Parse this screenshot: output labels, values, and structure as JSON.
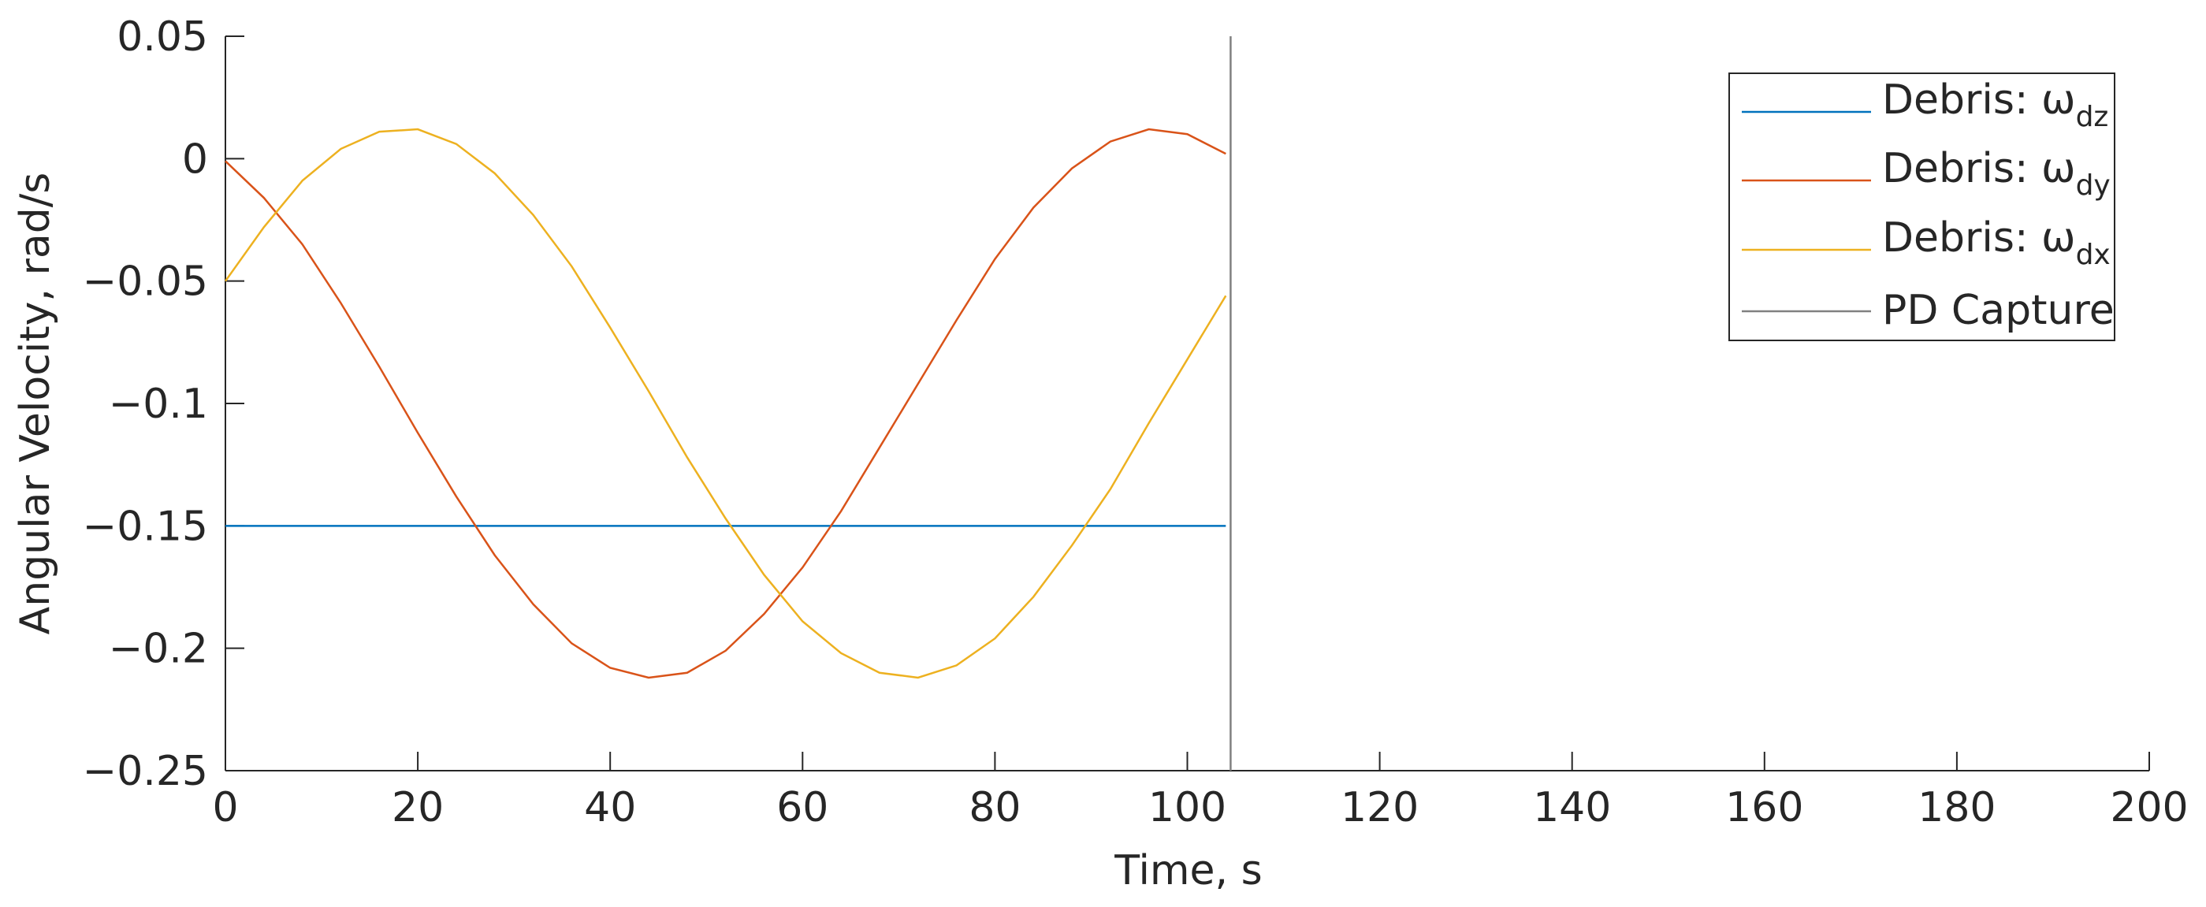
{
  "chart_data": {
    "type": "line",
    "ylabel": "Angular Velocity, rad/s",
    "xlabel": "Time, s",
    "x": [
      0,
      4,
      8,
      12,
      16,
      20,
      24,
      28,
      32,
      36,
      40,
      44,
      48,
      52,
      56,
      60,
      64,
      68,
      72,
      76,
      80,
      84,
      88,
      92,
      96,
      100,
      104
    ],
    "series": [
      {
        "name": "Debris: ω",
        "subscript": "dz",
        "color": "#0072bd",
        "values": [
          -0.15,
          -0.15,
          -0.15,
          -0.15,
          -0.15,
          -0.15,
          -0.15,
          -0.15,
          -0.15,
          -0.15,
          -0.15,
          -0.15,
          -0.15,
          -0.15,
          -0.15,
          -0.15,
          -0.15,
          -0.15,
          -0.15,
          -0.15,
          -0.15,
          -0.15,
          -0.15,
          -0.15,
          -0.15,
          -0.15,
          -0.15
        ]
      },
      {
        "name": "Debris: ω",
        "subscript": "dy",
        "color": "#d95319",
        "values": [
          -0.001,
          -0.016,
          -0.035,
          -0.059,
          -0.085,
          -0.112,
          -0.138,
          -0.162,
          -0.182,
          -0.198,
          -0.208,
          -0.212,
          -0.21,
          -0.201,
          -0.186,
          -0.167,
          -0.144,
          -0.118,
          -0.092,
          -0.066,
          -0.041,
          -0.02,
          -0.004,
          0.007,
          0.012,
          0.01,
          0.002
        ]
      },
      {
        "name": "Debris: ω",
        "subscript": "dx",
        "color": "#edb120",
        "values": [
          -0.05,
          -0.028,
          -0.009,
          0.004,
          0.011,
          0.012,
          0.006,
          -0.006,
          -0.023,
          -0.044,
          -0.069,
          -0.095,
          -0.122,
          -0.147,
          -0.17,
          -0.189,
          -0.202,
          -0.21,
          -0.212,
          -0.207,
          -0.196,
          -0.179,
          -0.158,
          -0.135,
          -0.108,
          -0.082,
          -0.056
        ]
      }
    ],
    "vline": {
      "name": "PD Capture",
      "x": 104.5,
      "color": "#808080"
    },
    "xlim": [
      0,
      200
    ],
    "xticks": [
      0,
      20,
      40,
      60,
      80,
      100,
      120,
      140,
      160,
      180,
      200
    ],
    "ylim": [
      -0.25,
      0.05
    ],
    "yticks": [
      {
        "value": -0.25,
        "label": "−0.25"
      },
      {
        "value": -0.2,
        "label": "−0.2"
      },
      {
        "value": -0.15,
        "label": "−0.15"
      },
      {
        "value": -0.1,
        "label": "−0.1"
      },
      {
        "value": -0.05,
        "label": "−0.05"
      },
      0,
      0.05
    ],
    "legend": "top-right"
  }
}
